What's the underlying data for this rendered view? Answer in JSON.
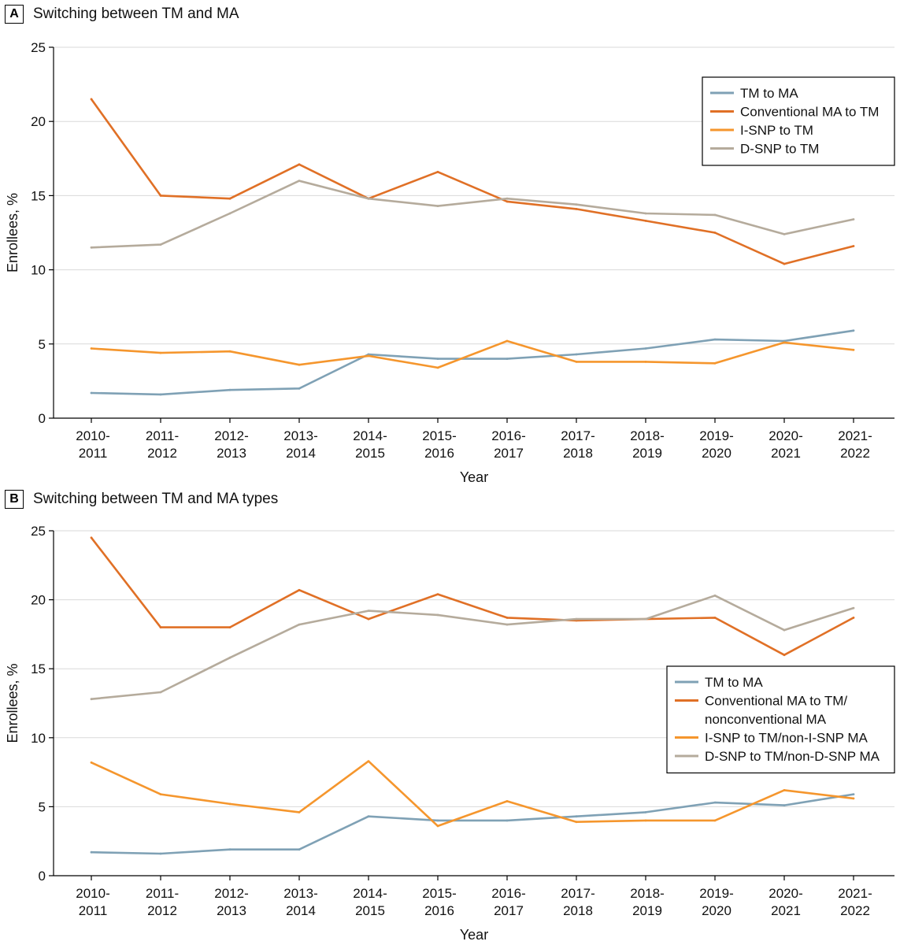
{
  "chart_data": [
    {
      "type": "line",
      "panel_label": "A",
      "title": "Switching between TM and MA",
      "xlabel": "Year",
      "ylabel": "Enrollees, %",
      "ylim": [
        0,
        25
      ],
      "yticks": [
        "0",
        "5",
        "10",
        "15",
        "20",
        "25"
      ],
      "categories": [
        [
          "2010-",
          "2011"
        ],
        [
          "2011-",
          "2012"
        ],
        [
          "2012-",
          "2013"
        ],
        [
          "2013-",
          "2014"
        ],
        [
          "2014-",
          "2015"
        ],
        [
          "2015-",
          "2016"
        ],
        [
          "2016-",
          "2017"
        ],
        [
          "2017-",
          "2018"
        ],
        [
          "2018-",
          "2019"
        ],
        [
          "2019-",
          "2020"
        ],
        [
          "2020-",
          "2021"
        ],
        [
          "2021-",
          "2022"
        ]
      ],
      "legend_position": "top-right",
      "grid": "horizontal",
      "series": [
        {
          "name": "TM to MA",
          "label_lines": [
            "TM to MA"
          ],
          "color": "#7fa1b5",
          "values": [
            1.7,
            1.6,
            1.9,
            2.0,
            4.3,
            4.0,
            4.0,
            4.3,
            4.7,
            5.3,
            5.2,
            5.9
          ]
        },
        {
          "name": "Conventional MA to TM",
          "label_lines": [
            "Conventional MA to TM"
          ],
          "color": "#e07026",
          "values": [
            21.5,
            15.0,
            14.8,
            17.1,
            14.8,
            16.6,
            14.6,
            14.1,
            13.3,
            12.5,
            10.4,
            11.6
          ]
        },
        {
          "name": "I-SNP to TM",
          "label_lines": [
            "I-SNP to TM"
          ],
          "color": "#f5962d",
          "values": [
            4.7,
            4.4,
            4.5,
            3.6,
            4.2,
            3.4,
            5.2,
            3.8,
            3.8,
            3.7,
            5.1,
            4.6
          ]
        },
        {
          "name": "D-SNP to TM",
          "label_lines": [
            "D-SNP to TM"
          ],
          "color": "#b5ab9c",
          "values": [
            11.5,
            11.7,
            13.8,
            16.0,
            14.8,
            14.3,
            14.8,
            14.4,
            13.8,
            13.7,
            12.4,
            13.4
          ]
        }
      ]
    },
    {
      "type": "line",
      "panel_label": "B",
      "title": "Switching between TM and MA types",
      "xlabel": "Year",
      "ylabel": "Enrollees, %",
      "ylim": [
        0,
        25
      ],
      "yticks": [
        "0",
        "5",
        "10",
        "15",
        "20",
        "25"
      ],
      "categories": [
        [
          "2010-",
          "2011"
        ],
        [
          "2011-",
          "2012"
        ],
        [
          "2012-",
          "2013"
        ],
        [
          "2013-",
          "2014"
        ],
        [
          "2014-",
          "2015"
        ],
        [
          "2015-",
          "2016"
        ],
        [
          "2016-",
          "2017"
        ],
        [
          "2017-",
          "2018"
        ],
        [
          "2018-",
          "2019"
        ],
        [
          "2019-",
          "2020"
        ],
        [
          "2020-",
          "2021"
        ],
        [
          "2021-",
          "2022"
        ]
      ],
      "legend_position": "center-right",
      "grid": "horizontal",
      "series": [
        {
          "name": "TM to MA",
          "label_lines": [
            "TM to MA"
          ],
          "color": "#7fa1b5",
          "values": [
            1.7,
            1.6,
            1.9,
            1.9,
            4.3,
            4.0,
            4.0,
            4.3,
            4.6,
            5.3,
            5.1,
            5.9
          ]
        },
        {
          "name": "Conventional MA to TM/nonconventional MA",
          "label_lines": [
            "Conventional MA to TM/",
            "nonconventional MA"
          ],
          "color": "#e07026",
          "values": [
            24.5,
            18.0,
            18.0,
            20.7,
            18.6,
            20.4,
            18.7,
            18.5,
            18.6,
            18.7,
            16.0,
            18.7
          ]
        },
        {
          "name": "I-SNP to TM/non-I-SNP MA",
          "label_lines": [
            "I-SNP to TM/non-I-SNP MA"
          ],
          "color": "#f5962d",
          "values": [
            8.2,
            5.9,
            5.2,
            4.6,
            8.3,
            3.6,
            5.4,
            3.9,
            4.0,
            4.0,
            6.2,
            5.6
          ]
        },
        {
          "name": "D-SNP to TM/non-D-SNP MA",
          "label_lines": [
            "D-SNP to TM/non-D-SNP MA"
          ],
          "color": "#b5ab9c",
          "values": [
            12.8,
            13.3,
            15.8,
            18.2,
            19.2,
            18.9,
            18.2,
            18.6,
            18.6,
            20.3,
            17.8,
            19.4
          ]
        }
      ]
    }
  ]
}
